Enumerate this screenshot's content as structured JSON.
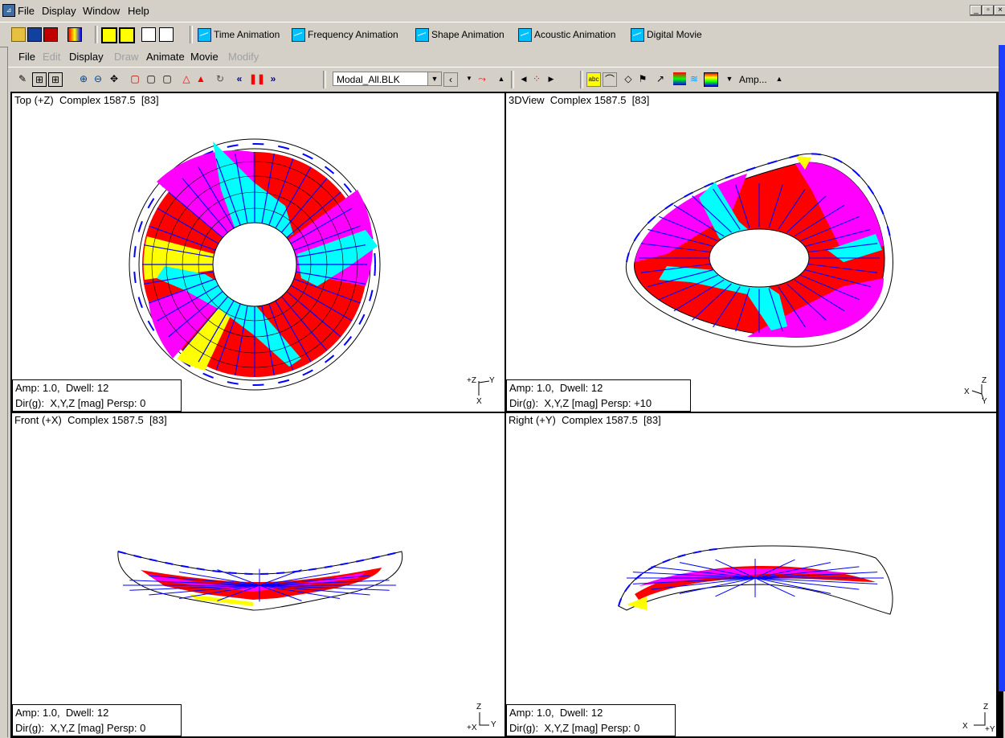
{
  "app": {
    "menu": [
      "File",
      "Display",
      "Window",
      "Help"
    ]
  },
  "toolbar1": {
    "buttons": [
      "Time Animation",
      "Frequency Animation",
      "Shape Animation",
      "Acoustic Animation",
      "Digital Movie"
    ]
  },
  "inner_window": {
    "menu": [
      {
        "label": "File",
        "enabled": true
      },
      {
        "label": "Edit",
        "enabled": false
      },
      {
        "label": "Display",
        "enabled": true
      },
      {
        "label": "Draw",
        "enabled": false
      },
      {
        "label": "Animate",
        "enabled": true
      },
      {
        "label": "Movie",
        "enabled": true
      },
      {
        "label": "Modify",
        "enabled": false
      }
    ],
    "toolbar": {
      "block_select": "Modal_All.BLK",
      "amp_label": "Amp..."
    }
  },
  "panes": {
    "top": {
      "title": "Top (+Z)  Complex 1587.5  [83]",
      "info1": "Amp: 1.0,  Dwell: 12",
      "info2": "Dir(g):  X,Y,Z [mag] Persp: 0",
      "axes": [
        "+Z",
        "Y",
        "X"
      ]
    },
    "view3d": {
      "title": "3DView  Complex 1587.5  [83]",
      "info1": "Amp: 1.0,  Dwell: 12",
      "info2": "Dir(g):  X,Y,Z [mag] Persp: +10",
      "axes": [
        "Z",
        "X",
        "Y"
      ]
    },
    "front": {
      "title": "Front (+X)  Complex 1587.5  [83]",
      "info1": "Amp: 1.0,  Dwell: 12",
      "info2": "Dir(g):  X,Y,Z [mag] Persp: 0",
      "axes": [
        "Z",
        "+X",
        "Y"
      ]
    },
    "right": {
      "title": "Right (+Y)  Complex 1587.5  [83]",
      "info1": "Amp: 1.0,  Dwell: 12",
      "info2": "Dir(g):  X,Y,Z [mag] Persp: 0",
      "axes": [
        "Z",
        "X",
        "+Y"
      ]
    }
  },
  "colors": {
    "red": "#ff0000",
    "magenta": "#ff00ff",
    "cyan": "#00ffff",
    "yellow": "#ffff00",
    "blue": "#0000ff",
    "chrome": "#d4d0c8"
  }
}
